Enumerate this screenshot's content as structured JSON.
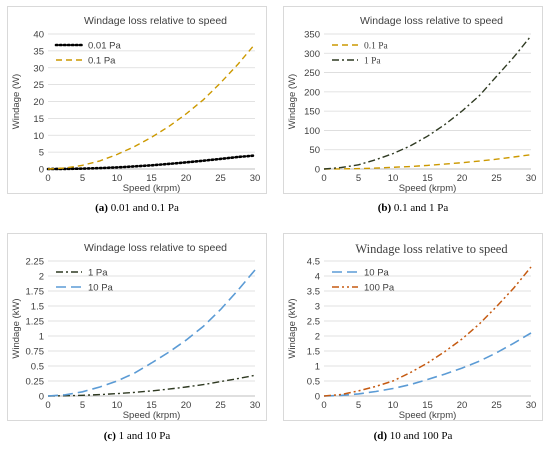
{
  "chart_data": [
    {
      "type": "line",
      "title": "Windage loss relative to speed",
      "xlabel": "Speed (krpm)",
      "ylabel": "Windage  (W)",
      "xlim": [
        0,
        30
      ],
      "ylim": [
        0,
        40
      ],
      "xticks": [
        "0",
        "5",
        "10",
        "15",
        "20",
        "25",
        "30"
      ],
      "yticks": [
        "0",
        "5",
        "10",
        "15",
        "20",
        "25",
        "30",
        "35",
        "40"
      ],
      "grid": true,
      "legend": "top-left",
      "x": [
        0,
        2.5,
        5,
        7.5,
        10,
        12.5,
        15,
        17.5,
        20,
        22.5,
        25,
        27.5,
        30
      ],
      "series": [
        {
          "name": "0.01 Pa",
          "color": "#000000",
          "dash": "dot",
          "values": [
            0,
            0.02,
            0.11,
            0.27,
            0.48,
            0.76,
            1.1,
            1.5,
            1.95,
            2.45,
            3.0,
            3.55,
            4.0
          ]
        },
        {
          "name": "0.1 Pa",
          "color": "#cc9900",
          "dash": "dash",
          "values": [
            0,
            0.3,
            1.1,
            2.4,
            4.3,
            6.6,
            9.4,
            12.6,
            16.3,
            20.5,
            25.5,
            31,
            37
          ]
        }
      ]
    },
    {
      "type": "line",
      "title": "Windage loss relative to speed",
      "xlabel": "Speed (krpm)",
      "ylabel": "Windage  (W)",
      "xlim": [
        0,
        30
      ],
      "ylim": [
        0,
        350
      ],
      "xticks": [
        "0",
        "5",
        "10",
        "15",
        "20",
        "25",
        "30"
      ],
      "yticks": [
        "0",
        "50",
        "100",
        "150",
        "200",
        "250",
        "300",
        "350"
      ],
      "grid": true,
      "legend": "top-left",
      "x": [
        0,
        2.5,
        5,
        7.5,
        10,
        12.5,
        15,
        17.5,
        20,
        22.5,
        25,
        27.5,
        30
      ],
      "series": [
        {
          "name": "0.1 Pa",
          "color": "#cc9900",
          "dash": "dash",
          "values": [
            0,
            0.3,
            1.1,
            2.4,
            4.3,
            6.6,
            9.4,
            12.6,
            16.3,
            20.5,
            25.5,
            31,
            37
          ]
        },
        {
          "name": "1 Pa",
          "color": "#2f3a22",
          "dash": "dashdot",
          "values": [
            0,
            4,
            11,
            24,
            40,
            60,
            85,
            115,
            150,
            190,
            240,
            290,
            345
          ]
        }
      ]
    },
    {
      "type": "line",
      "title": "Windage loss relative to speed",
      "xlabel": "Speed (krpm)",
      "ylabel": "Windage (kW)",
      "xlim": [
        0,
        30
      ],
      "ylim": [
        0,
        2.25
      ],
      "xticks": [
        "0",
        "5",
        "10",
        "15",
        "20",
        "25",
        "30"
      ],
      "yticks": [
        "0",
        "0.25",
        "0.5",
        "0.75",
        "1",
        "1.25",
        "1.5",
        "1.75",
        "2",
        "2.25"
      ],
      "grid": true,
      "legend": "top-left",
      "x": [
        0,
        2.5,
        5,
        7.5,
        10,
        12.5,
        15,
        17.5,
        20,
        22.5,
        25,
        27.5,
        30
      ],
      "series": [
        {
          "name": "1 Pa",
          "color": "#2f3a22",
          "dash": "dashdot",
          "values": [
            0,
            0.004,
            0.011,
            0.024,
            0.04,
            0.06,
            0.085,
            0.115,
            0.15,
            0.19,
            0.24,
            0.29,
            0.345
          ]
        },
        {
          "name": "10 Pa",
          "color": "#5b9bd5",
          "dash": "longdash",
          "values": [
            0,
            0.02,
            0.07,
            0.15,
            0.25,
            0.38,
            0.55,
            0.73,
            0.93,
            1.16,
            1.44,
            1.76,
            2.1
          ]
        }
      ]
    },
    {
      "type": "line",
      "title": "Windage loss relative to speed",
      "xlabel": "Speed (krpm)",
      "ylabel": "Windage (kW)",
      "xlim": [
        0,
        30
      ],
      "ylim": [
        0,
        4.5
      ],
      "xticks": [
        "0",
        "5",
        "10",
        "15",
        "20",
        "25",
        "30"
      ],
      "yticks": [
        "0",
        "0.5",
        "1",
        "1.5",
        "2",
        "2.5",
        "3",
        "3.5",
        "4",
        "4.5"
      ],
      "grid": true,
      "legend": "top-left",
      "x": [
        0,
        2.5,
        5,
        7.5,
        10,
        12.5,
        15,
        17.5,
        20,
        22.5,
        25,
        27.5,
        30
      ],
      "series": [
        {
          "name": "10 Pa",
          "color": "#5b9bd5",
          "dash": "longdash",
          "values": [
            0,
            0.02,
            0.07,
            0.15,
            0.25,
            0.38,
            0.55,
            0.73,
            0.93,
            1.16,
            1.44,
            1.76,
            2.1
          ]
        },
        {
          "name": "100 Pa",
          "color": "#c55a11",
          "dash": "dashdotdot",
          "values": [
            0,
            0.05,
            0.17,
            0.32,
            0.5,
            0.78,
            1.1,
            1.48,
            1.9,
            2.4,
            2.98,
            3.6,
            4.3
          ]
        }
      ]
    }
  ],
  "captions": [
    {
      "label": "(a)",
      "text": " 0.01 and 0.1 Pa"
    },
    {
      "label": "(b)",
      "text": " 0.1 and 1 Pa"
    },
    {
      "label": "(c)",
      "text": " 1 and 10 Pa"
    },
    {
      "label": "(d)",
      "text": " 10 and 100 Pa"
    }
  ]
}
